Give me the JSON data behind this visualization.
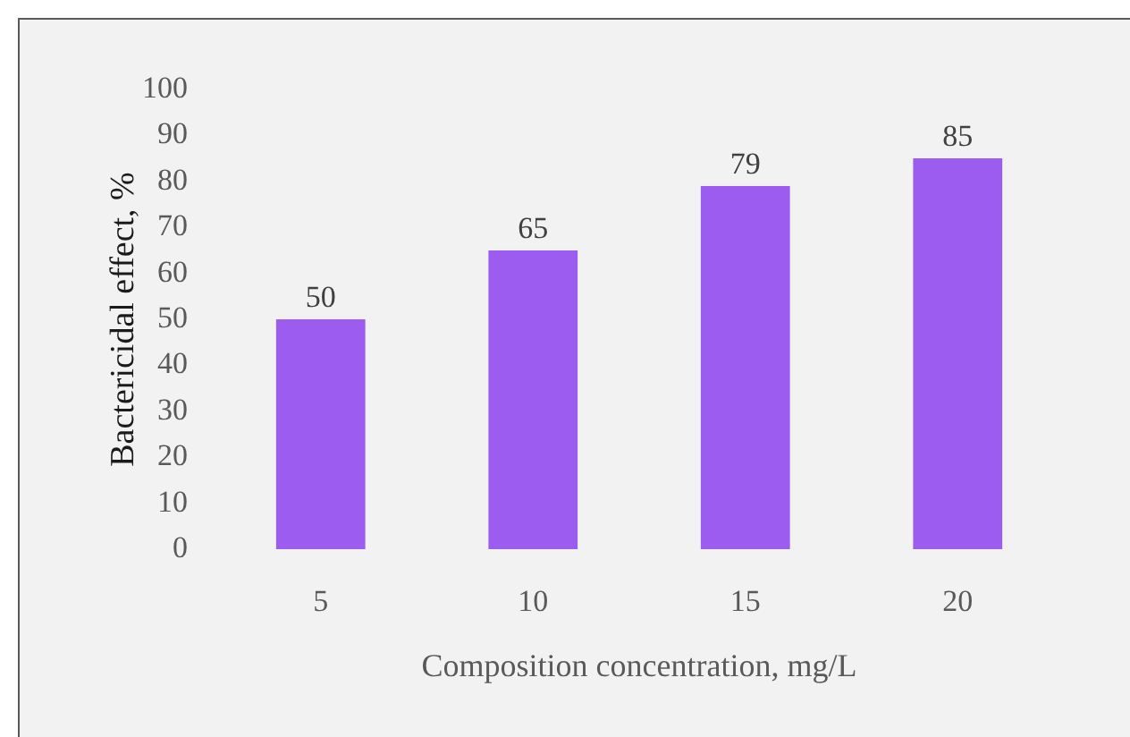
{
  "chart_data": {
    "type": "bar",
    "xlabel": "Composition concentration, mg/L",
    "ylabel": "Bactericidal effect, %",
    "categories": [
      "5",
      "10",
      "15",
      "20"
    ],
    "values": [
      50,
      65,
      79,
      85
    ],
    "color": "#9d5cf0",
    "ylim": [
      0,
      100
    ],
    "yticks": [
      0,
      10,
      20,
      30,
      40,
      50,
      60,
      70,
      80,
      90,
      100
    ],
    "data_labels": true
  }
}
